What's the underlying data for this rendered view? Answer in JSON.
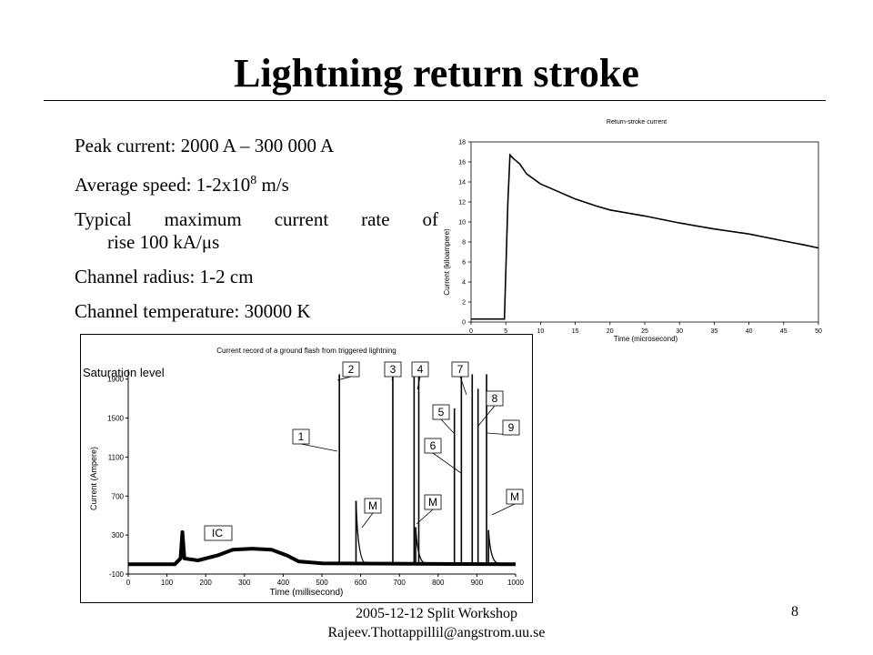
{
  "slide": {
    "title": "Lightning return stroke",
    "bullets": {
      "peak": "Peak current:  2000 A – 300 000 A",
      "speed_prefix": "Average speed:  1-2x10",
      "speed_exp": "8",
      "speed_suffix": " m/s",
      "rise_line1": "Typical maximum current rate of",
      "rise_line2": "rise 100 kA/μs",
      "radius": "Channel radius: 1-2 cm",
      "temperature": "Channel temperature: 30000 K"
    },
    "footer": {
      "line1": "2005-12-12 Split Workshop",
      "line2": "Rajeev.Thottappillil@angstrom.uu.se",
      "page": "8"
    }
  },
  "chart_data": [
    {
      "type": "line",
      "title": "Return-stroke current",
      "xlabel": "Time (microsecond)",
      "ylabel": "Current (kiloampere)",
      "xlim": [
        0,
        50
      ],
      "ylim": [
        0,
        18
      ],
      "xticks": [
        0,
        5,
        10,
        15,
        20,
        25,
        30,
        35,
        40,
        45,
        50
      ],
      "yticks": [
        0,
        2,
        4,
        6,
        8,
        10,
        12,
        14,
        16,
        18
      ],
      "series": [
        {
          "x": [
            0,
            3,
            4.8,
            5.0,
            5.3,
            5.6,
            6,
            7,
            8,
            10,
            12,
            15,
            18,
            20,
            25,
            30,
            35,
            40,
            45,
            48,
            50
          ],
          "values": [
            0.3,
            0.3,
            0.3,
            5,
            12,
            16.7,
            16.4,
            15.8,
            14.8,
            13.8,
            13.2,
            12.3,
            11.6,
            11.2,
            10.6,
            9.9,
            9.3,
            8.8,
            8.1,
            7.7,
            7.4
          ]
        }
      ],
      "grid": false,
      "legend": "none"
    },
    {
      "type": "line",
      "title": "Current record of a ground flash from triggered lightning",
      "xlabel": "Time (millisecond)",
      "ylabel": "Current (Ampere)",
      "xlim": [
        0,
        1000
      ],
      "ylim": [
        -100,
        2000
      ],
      "xticks": [
        0,
        100,
        200,
        300,
        400,
        500,
        600,
        700,
        800,
        900,
        1000
      ],
      "yticks": [
        -100,
        300,
        700,
        1100,
        1500,
        1900
      ],
      "saturation_label": "Saturation level",
      "baseline": [
        {
          "x": 0,
          "y": 0
        },
        {
          "x": 120,
          "y": 0
        },
        {
          "x": 135,
          "y": 60
        },
        {
          "x": 140,
          "y": 330
        },
        {
          "x": 145,
          "y": 60
        },
        {
          "x": 180,
          "y": 40
        },
        {
          "x": 230,
          "y": 90
        },
        {
          "x": 270,
          "y": 150
        },
        {
          "x": 320,
          "y": 160
        },
        {
          "x": 370,
          "y": 150
        },
        {
          "x": 410,
          "y": 90
        },
        {
          "x": 440,
          "y": 30
        },
        {
          "x": 500,
          "y": 10
        },
        {
          "x": 1000,
          "y": 0
        }
      ],
      "strokes": [
        {
          "x": 545,
          "y": 1950
        },
        {
          "x": 588,
          "y": 650
        },
        {
          "x": 683,
          "y": 1950
        },
        {
          "x": 738,
          "y": 1950
        },
        {
          "x": 742,
          "y": 380
        },
        {
          "x": 750,
          "y": 1950
        },
        {
          "x": 842,
          "y": 1600
        },
        {
          "x": 860,
          "y": 1950
        },
        {
          "x": 888,
          "y": 1950
        },
        {
          "x": 903,
          "y": 1800
        },
        {
          "x": 925,
          "y": 1950
        },
        {
          "x": 930,
          "y": 350
        }
      ],
      "annotations": [
        "1",
        "2",
        "3",
        "4",
        "5",
        "6",
        "7",
        "8",
        "9",
        "M",
        "M",
        "M",
        "IC"
      ],
      "grid": false,
      "legend": "none"
    }
  ]
}
